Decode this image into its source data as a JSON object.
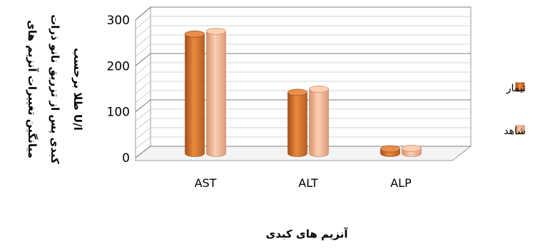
{
  "chart_data": {
    "type": "bar",
    "categories": [
      "AST",
      "ALT",
      "ALP"
    ],
    "series": [
      {
        "name": "تیمار",
        "values": [
          260,
          133,
          10
        ],
        "color": "#d9742a"
      },
      {
        "name": "شاهد",
        "values": [
          266,
          140,
          11
        ],
        "color": "#f2b28c"
      }
    ],
    "ylim": [
      0,
      300
    ],
    "yticks": [
      "0",
      "100",
      "200",
      "300"
    ],
    "ylabel_lines": [
      "میانگین تغییرات آنزیم های",
      "کبدی پس از تزریق نانو ذرات",
      "طلا برحسب U/l"
    ],
    "xlabel": "آنزیم های کبدی",
    "grid": true,
    "legend_position": "right",
    "style": "3d-cylinder"
  }
}
